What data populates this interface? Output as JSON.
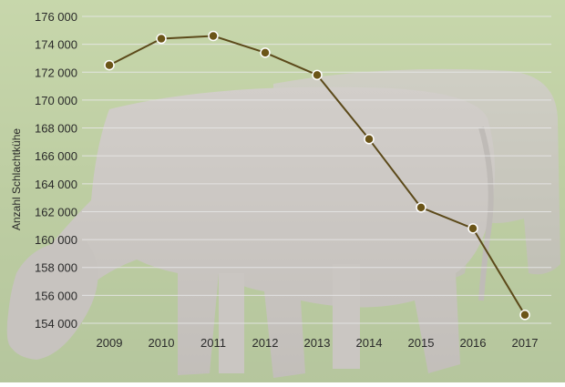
{
  "chart_data": {
    "type": "line",
    "title": "",
    "xlabel": "",
    "ylabel": "Anzahl Schlachtkühe",
    "x": [
      "2009",
      "2010",
      "2011",
      "2012",
      "2013",
      "2014",
      "2015",
      "2016",
      "2017"
    ],
    "values": [
      172500,
      174400,
      174600,
      173400,
      171800,
      167200,
      162300,
      160800,
      154600
    ],
    "ylim": [
      154000,
      176000
    ],
    "y_ticks": [
      154000,
      156000,
      158000,
      160000,
      162000,
      164000,
      166000,
      168000,
      170000,
      172000,
      174000,
      176000
    ],
    "y_tick_labels": [
      "154 000",
      "156 000",
      "158 000",
      "160 000",
      "162 000",
      "164 000",
      "166 000",
      "168 000",
      "170 000",
      "172 000",
      "174 000",
      "176 000"
    ],
    "grid": true,
    "legend": "none",
    "colors": {
      "line": "#5c4a1a",
      "marker_fill": "#6b5518",
      "marker_stroke": "#ffffff",
      "grid": "#e6e6e6",
      "text": "#2a2a2a",
      "overlay": "#ffffff",
      "grass": "#7c9a45",
      "cow": "#9a928a"
    },
    "background": "photo of grazing cows on a green meadow, faded with a white overlay"
  }
}
